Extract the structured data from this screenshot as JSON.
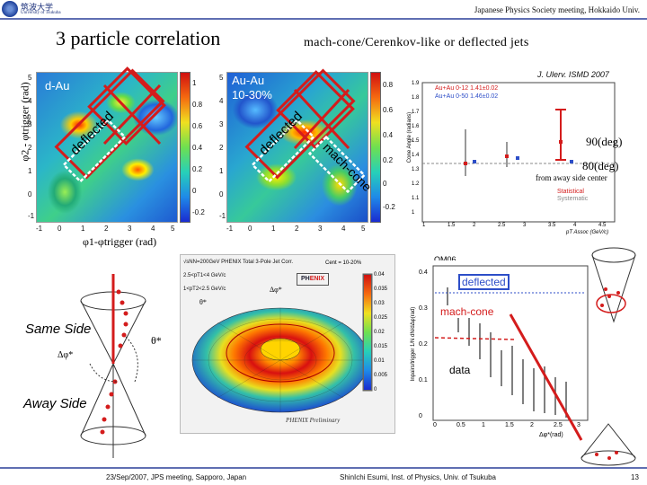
{
  "header": {
    "institution": "筑波大学",
    "institution_sub": "University of Tsukuba",
    "meeting": "Japanese Physics Society meeting, Hokkaido Univ."
  },
  "titles": {
    "left": "3 particle correlation",
    "right": "mach-cone/Cerenkov-like or deflected jets"
  },
  "panels": {
    "dau_label": "d-Au",
    "auau_label_1": "Au-Au",
    "auau_label_2": "10-30%",
    "x_ticks": [
      "-1",
      "0",
      "1",
      "2",
      "3",
      "4",
      "5"
    ],
    "y_ticks": [
      "5",
      "4",
      "3",
      "2",
      "1",
      "0",
      "-1"
    ],
    "cb1_ticks": [
      "1",
      "0.8",
      "0.6",
      "0.4",
      "0.2",
      "0",
      "-0.2"
    ],
    "cb2_ticks": [
      "0.8",
      "0.6",
      "0.4",
      "0.2",
      "0",
      "-0.2"
    ],
    "text_deflected": "deflected",
    "text_cone": "mach-cone"
  },
  "axes": {
    "ylabel_main": "φ2 - φtrigger (rad)",
    "xlabel_main": "φ1-φtrigger (rad)"
  },
  "reference": "J. Ulery, ISMD 2007",
  "cone_angle_plot": {
    "legend": [
      "Au+Au 0-12 1.41±0.02",
      "Au+Au 0-50 1.46±0.02"
    ],
    "legend_extra": [
      "Statistical",
      "Systematic"
    ],
    "ylabel": "Cone Angle (radians)",
    "xlabel": "pT Assoc (GeV/c)",
    "y_ticks": [
      "1.9",
      "1.8",
      "1.7",
      "1.6",
      "1.5",
      "1.4",
      "1.3",
      "1.2",
      "1.1",
      "1"
    ],
    "x_ticks": [
      "1",
      "1.5",
      "2",
      "2.5",
      "3",
      "3.5",
      "4",
      "4.5"
    ]
  },
  "annotations": {
    "deg90": "90(deg)",
    "deg80": "80(deg)",
    "from_away": "from away side center"
  },
  "phenix": {
    "conf_tag": "QM06",
    "top_info": "√sNN=200GeV PHENIX Total 3-Pole Jet Corr.",
    "cent": "Cent = 10-20%",
    "pt1": "2.5<pT1<4 GeV/c",
    "pt2": "1<pT2<2.5 GeV/c",
    "prelim": "PHENIX Preliminary",
    "dphi_star": "Δφ*",
    "theta_star": "θ*",
    "cb_ticks": [
      "0.04",
      "0.035",
      "0.03",
      "0.025",
      "0.02",
      "0.015",
      "0.01",
      "0.005",
      "0"
    ]
  },
  "right_plot": {
    "ylabel": "Inpairs/trigger 1/N dN/dΔφ(rad)",
    "xlabel": "Δφ*(rad)",
    "y_ticks": [
      "0.4",
      "0.3",
      "0.2",
      "0.1",
      "0"
    ],
    "x_ticks": [
      "0",
      "0.5",
      "1",
      "1.5",
      "2",
      "2.5",
      "3"
    ],
    "labels": {
      "deflected": "deflected",
      "mach_cone": "mach-cone",
      "data": "data"
    }
  },
  "cones": {
    "same_side": "Same Side",
    "away_side": "Away Side",
    "theta": "θ*",
    "dphi": "Δφ*"
  },
  "footer": {
    "left": "23/Sep/2007, JPS meeting, Sapporo, Japan",
    "center": "ShinIchi Esumi, Inst. of Physics, Univ. of Tsukuba",
    "page": "13"
  },
  "colors": {
    "accent_red": "#d41c1c",
    "accent_blue": "#2d4ec8"
  }
}
